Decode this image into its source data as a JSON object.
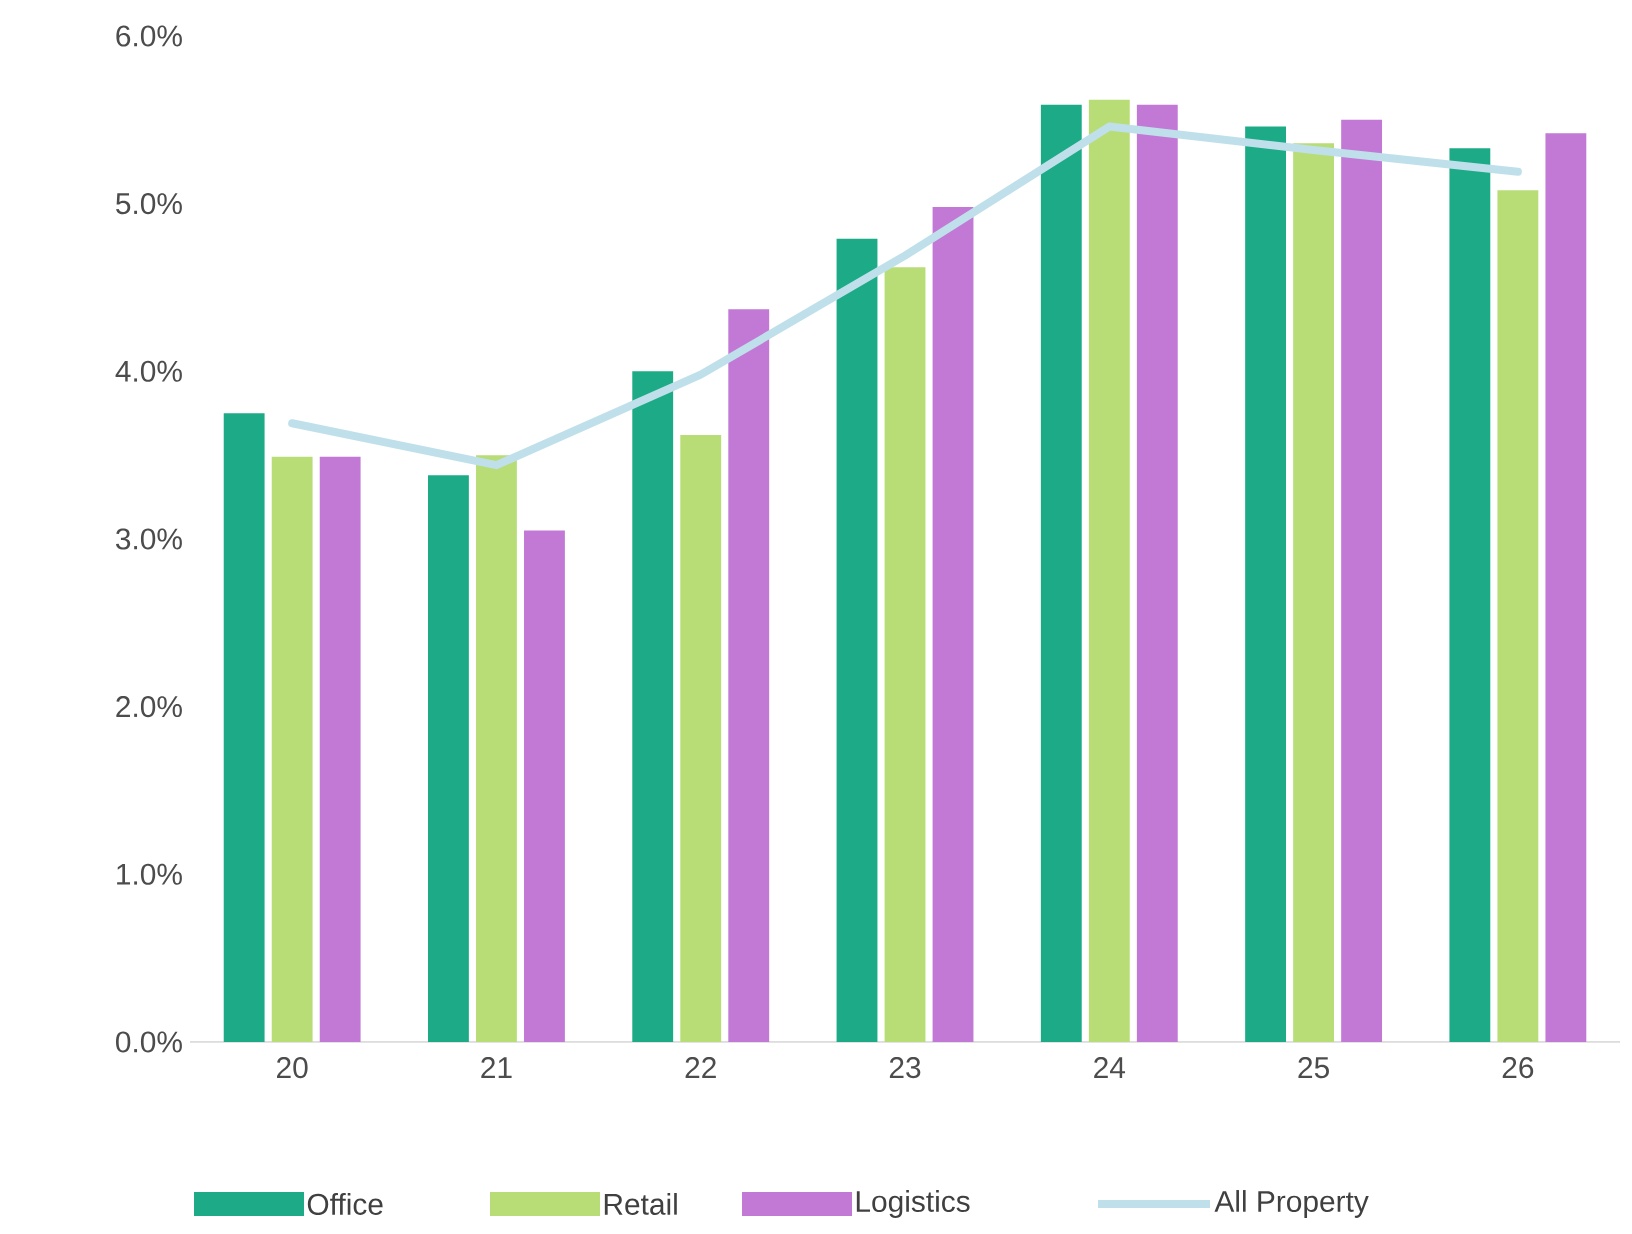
{
  "chart_data": {
    "type": "bar",
    "categories": [
      "20",
      "21",
      "22",
      "23",
      "24",
      "25",
      "26"
    ],
    "series": [
      {
        "name": "Office",
        "color": "#1dab87",
        "values": [
          3.75,
          3.38,
          4.0,
          4.79,
          5.59,
          5.46,
          5.33
        ]
      },
      {
        "name": "Retail",
        "color": "#b8dd77",
        "values": [
          3.49,
          3.5,
          3.62,
          4.62,
          5.62,
          5.36,
          5.08
        ]
      },
      {
        "name": "Logistics",
        "color": "#c279d6",
        "values": [
          3.49,
          3.05,
          4.37,
          4.98,
          5.59,
          5.5,
          5.42
        ]
      },
      {
        "name": "All Property",
        "type": "line",
        "color": "#bfe0ea",
        "values": [
          3.69,
          3.44,
          3.98,
          4.69,
          5.46,
          5.32,
          5.19
        ]
      }
    ],
    "ylim": [
      0,
      6
    ],
    "yticks": [
      {
        "value": 0,
        "label": "0.0%"
      },
      {
        "value": 1,
        "label": "1.0%"
      },
      {
        "value": 2,
        "label": "2.0%"
      },
      {
        "value": 3,
        "label": "3.0%"
      },
      {
        "value": 4,
        "label": "4.0%"
      },
      {
        "value": 5,
        "label": "5.0%"
      },
      {
        "value": 6,
        "label": "6.0%"
      }
    ],
    "grid": false,
    "legend": "bottom"
  }
}
